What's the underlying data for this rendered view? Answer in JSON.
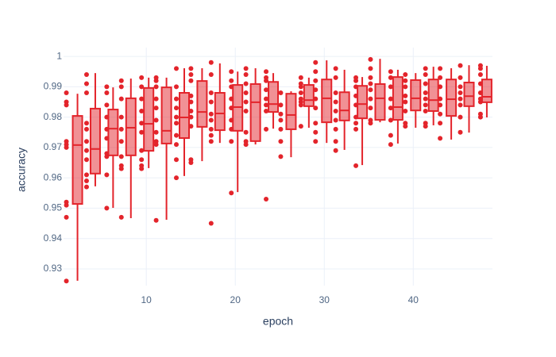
{
  "chart_data": {
    "type": "box",
    "x_label": "epoch",
    "y_label": "accuracy",
    "color": "#e3242b",
    "xlim": [
      0.7,
      48.9
    ],
    "ylim": [
      0.9245,
      1.0029
    ],
    "xticks": [
      10,
      20,
      30,
      40
    ],
    "yticks": [
      0.93,
      0.94,
      0.95,
      0.96,
      0.97,
      0.98,
      0.99,
      1
    ],
    "grid": true,
    "boxes": [
      {
        "x": 2,
        "low": 0.9261,
        "q1": 0.9514,
        "median": 0.9708,
        "q3": 0.9804,
        "high": 0.9877,
        "points": [
          0.926,
          0.947,
          0.951,
          0.952,
          0.97,
          0.971,
          0.972,
          0.984,
          0.985,
          0.988
        ]
      },
      {
        "x": 4,
        "low": 0.9572,
        "q1": 0.9614,
        "median": 0.9695,
        "q3": 0.9828,
        "high": 0.9945,
        "points": [
          0.957,
          0.959,
          0.961,
          0.966,
          0.969,
          0.972,
          0.976,
          0.978,
          0.988,
          0.991,
          0.994
        ]
      },
      {
        "x": 6,
        "low": 0.9501,
        "q1": 0.9674,
        "median": 0.9762,
        "q3": 0.9825,
        "high": 0.9898,
        "points": [
          0.95,
          0.961,
          0.967,
          0.968,
          0.973,
          0.976,
          0.98,
          0.984,
          0.988,
          0.99
        ]
      },
      {
        "x": 8,
        "low": 0.9467,
        "q1": 0.9674,
        "median": 0.9765,
        "q3": 0.9862,
        "high": 0.9927,
        "points": [
          0.947,
          0.963,
          0.964,
          0.967,
          0.972,
          0.976,
          0.98,
          0.986,
          0.99,
          0.992
        ]
      },
      {
        "x": 10,
        "low": 0.9632,
        "q1": 0.9689,
        "median": 0.9778,
        "q3": 0.9896,
        "high": 0.993,
        "points": [
          0.963,
          0.964,
          0.966,
          0.969,
          0.975,
          0.978,
          0.982,
          0.986,
          0.99,
          0.993
        ]
      },
      {
        "x": 12,
        "low": 0.9462,
        "q1": 0.9713,
        "median": 0.9755,
        "q3": 0.9898,
        "high": 0.993,
        "points": [
          0.946,
          0.971,
          0.972,
          0.975,
          0.979,
          0.983,
          0.986,
          0.99,
          0.992,
          0.993
        ]
      },
      {
        "x": 14,
        "low": 0.9606,
        "q1": 0.9731,
        "median": 0.9799,
        "q3": 0.988,
        "high": 0.9961,
        "points": [
          0.96,
          0.966,
          0.971,
          0.974,
          0.978,
          0.98,
          0.983,
          0.986,
          0.99,
          0.996
        ]
      },
      {
        "x": 16,
        "low": 0.9655,
        "q1": 0.9768,
        "median": 0.9817,
        "q3": 0.9919,
        "high": 0.9961,
        "points": [
          0.965,
          0.966,
          0.977,
          0.98,
          0.982,
          0.985,
          0.987,
          0.992,
          0.994,
          0.996
        ]
      },
      {
        "x": 18,
        "low": 0.9715,
        "q1": 0.9757,
        "median": 0.9812,
        "q3": 0.988,
        "high": 0.9977,
        "points": [
          0.945,
          0.972,
          0.974,
          0.976,
          0.979,
          0.981,
          0.985,
          0.988,
          0.994,
          0.998
        ]
      },
      {
        "x": 20,
        "low": 0.9553,
        "q1": 0.9755,
        "median": 0.9833,
        "q3": 0.9906,
        "high": 0.995,
        "points": [
          0.955,
          0.972,
          0.976,
          0.979,
          0.983,
          0.986,
          0.99,
          0.992,
          0.995
        ]
      },
      {
        "x": 22,
        "low": 0.971,
        "q1": 0.9721,
        "median": 0.9849,
        "q3": 0.9909,
        "high": 0.9961,
        "points": [
          0.971,
          0.972,
          0.975,
          0.982,
          0.985,
          0.988,
          0.991,
          0.994,
          0.996
        ]
      },
      {
        "x": 24,
        "low": 0.9762,
        "q1": 0.9817,
        "median": 0.9843,
        "q3": 0.9916,
        "high": 0.9945,
        "points": [
          0.953,
          0.976,
          0.982,
          0.984,
          0.986,
          0.989,
          0.992,
          0.993,
          0.995
        ]
      },
      {
        "x": 26,
        "low": 0.9668,
        "q1": 0.976,
        "median": 0.9807,
        "q3": 0.9877,
        "high": 0.9885,
        "points": [
          0.967,
          0.972,
          0.976,
          0.979,
          0.981,
          0.984,
          0.988
        ]
      },
      {
        "x": 28,
        "low": 0.9765,
        "q1": 0.9836,
        "median": 0.9856,
        "q3": 0.9906,
        "high": 0.993,
        "points": [
          0.977,
          0.984,
          0.985,
          0.986,
          0.988,
          0.99,
          0.991,
          0.993
        ]
      },
      {
        "x": 30,
        "low": 0.9715,
        "q1": 0.9783,
        "median": 0.9862,
        "q3": 0.9924,
        "high": 0.9987,
        "points": [
          0.972,
          0.975,
          0.978,
          0.983,
          0.986,
          0.989,
          0.992,
          0.995,
          0.998
        ]
      },
      {
        "x": 32,
        "low": 0.9692,
        "q1": 0.9789,
        "median": 0.9822,
        "q3": 0.9882,
        "high": 0.9956,
        "points": [
          0.969,
          0.972,
          0.976,
          0.979,
          0.982,
          0.985,
          0.988,
          0.993,
          0.996
        ]
      },
      {
        "x": 34,
        "low": 0.9642,
        "q1": 0.9796,
        "median": 0.9843,
        "q3": 0.9903,
        "high": 0.9932,
        "points": [
          0.964,
          0.976,
          0.978,
          0.98,
          0.984,
          0.987,
          0.99,
          0.992,
          0.993
        ]
      },
      {
        "x": 36,
        "low": 0.9783,
        "q1": 0.9791,
        "median": 0.9862,
        "q3": 0.9909,
        "high": 0.9992,
        "points": [
          0.978,
          0.979,
          0.983,
          0.986,
          0.989,
          0.991,
          0.993,
          0.996,
          0.999
        ]
      },
      {
        "x": 38,
        "low": 0.9713,
        "q1": 0.9791,
        "median": 0.9833,
        "q3": 0.9932,
        "high": 0.9956,
        "points": [
          0.971,
          0.974,
          0.979,
          0.983,
          0.986,
          0.99,
          0.993,
          0.995
        ]
      },
      {
        "x": 40,
        "low": 0.9765,
        "q1": 0.9822,
        "median": 0.9862,
        "q3": 0.9922,
        "high": 0.9945,
        "points": [
          0.977,
          0.978,
          0.982,
          0.985,
          0.987,
          0.99,
          0.992,
          0.994
        ]
      },
      {
        "x": 42,
        "low": 0.9773,
        "q1": 0.982,
        "median": 0.9856,
        "q3": 0.9924,
        "high": 0.9966,
        "points": [
          0.977,
          0.978,
          0.982,
          0.984,
          0.986,
          0.988,
          0.991,
          0.994,
          0.996
        ]
      },
      {
        "x": 44,
        "low": 0.9726,
        "q1": 0.9804,
        "median": 0.9859,
        "q3": 0.9924,
        "high": 0.9961,
        "points": [
          0.973,
          0.978,
          0.981,
          0.984,
          0.986,
          0.99,
          0.993,
          0.996
        ]
      },
      {
        "x": 46,
        "low": 0.9749,
        "q1": 0.9836,
        "median": 0.9869,
        "q3": 0.9914,
        "high": 0.9971,
        "points": [
          0.975,
          0.98,
          0.984,
          0.986,
          0.988,
          0.99,
          0.993,
          0.997
        ]
      },
      {
        "x": 48,
        "low": 0.9799,
        "q1": 0.9849,
        "median": 0.9867,
        "q3": 0.9924,
        "high": 0.9969,
        "points": [
          0.98,
          0.981,
          0.985,
          0.986,
          0.988,
          0.991,
          0.994,
          0.996,
          0.997
        ]
      }
    ]
  }
}
